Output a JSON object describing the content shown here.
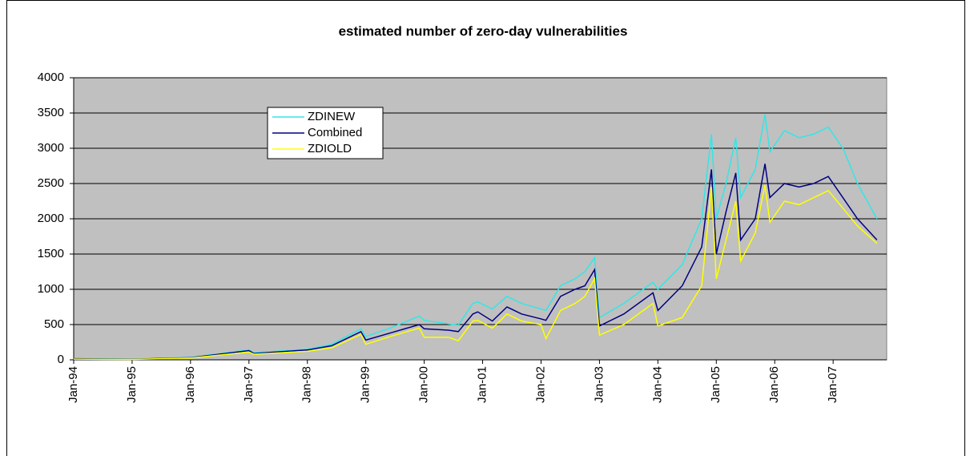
{
  "chart_data": {
    "type": "line",
    "title": "estimated number of zero-day vulnerabilities",
    "x": [
      "1994-01",
      "1995-01",
      "1996-01",
      "1997-01",
      "1997-02",
      "1998-01",
      "1998-06",
      "1998-12",
      "1999-01",
      "1999-06",
      "1999-12",
      "2000-01",
      "2000-06",
      "2000-08",
      "2000-11",
      "2000-12",
      "2001-03",
      "2001-06",
      "2001-09",
      "2002-01",
      "2002-02",
      "2002-05",
      "2002-08",
      "2002-10",
      "2002-12",
      "2003-01",
      "2003-06",
      "2003-12",
      "2004-01",
      "2004-06",
      "2004-10",
      "2004-12",
      "2005-01",
      "2005-03",
      "2005-05",
      "2005-06",
      "2005-09",
      "2005-11",
      "2005-12",
      "2006-03",
      "2006-06",
      "2006-09",
      "2006-12",
      "2007-03",
      "2007-06",
      "2007-10"
    ],
    "series": [
      {
        "name": "ZDINEW",
        "color": "#33e6e6",
        "values": [
          20,
          10,
          35,
          140,
          100,
          150,
          220,
          440,
          330,
          450,
          620,
          560,
          510,
          490,
          800,
          820,
          720,
          900,
          800,
          720,
          700,
          1050,
          1150,
          1250,
          1450,
          600,
          800,
          1100,
          1000,
          1350,
          2000,
          3200,
          2000,
          2500,
          3150,
          2300,
          2700,
          3480,
          2950,
          3250,
          3150,
          3200,
          3300,
          3000,
          2500,
          2000
        ]
      },
      {
        "name": "Combined",
        "color": "#000080",
        "values": [
          15,
          8,
          30,
          130,
          90,
          140,
          200,
          400,
          280,
          380,
          500,
          440,
          420,
          400,
          650,
          680,
          550,
          750,
          650,
          580,
          560,
          900,
          1000,
          1050,
          1280,
          480,
          650,
          950,
          700,
          1050,
          1600,
          2700,
          1500,
          2100,
          2650,
          1700,
          2000,
          2780,
          2300,
          2500,
          2450,
          2500,
          2600,
          2300,
          2000,
          1700
        ]
      },
      {
        "name": "ZDIOLD",
        "color": "#ffff00",
        "values": [
          10,
          5,
          25,
          110,
          80,
          120,
          170,
          360,
          220,
          330,
          450,
          320,
          320,
          270,
          550,
          560,
          450,
          650,
          550,
          500,
          300,
          700,
          800,
          900,
          1150,
          350,
          500,
          800,
          480,
          600,
          1050,
          2450,
          1150,
          1700,
          2250,
          1400,
          1800,
          2480,
          1950,
          2250,
          2200,
          2300,
          2400,
          2150,
          1900,
          1650
        ]
      }
    ],
    "xlim": [
      "1994-01",
      "2007-12"
    ],
    "xticks": [
      {
        "value": "1994-01",
        "label": "Jan-94"
      },
      {
        "value": "1995-01",
        "label": "Jan-95"
      },
      {
        "value": "1996-01",
        "label": "Jan-96"
      },
      {
        "value": "1997-01",
        "label": "Jan-97"
      },
      {
        "value": "1998-01",
        "label": "Jan-98"
      },
      {
        "value": "1999-01",
        "label": "Jan-99"
      },
      {
        "value": "2000-01",
        "label": "Jan-00"
      },
      {
        "value": "2001-01",
        "label": "Jan-01"
      },
      {
        "value": "2002-01",
        "label": "Jan-02"
      },
      {
        "value": "2003-01",
        "label": "Jan-03"
      },
      {
        "value": "2004-01",
        "label": "Jan-04"
      },
      {
        "value": "2005-01",
        "label": "Jan-05"
      },
      {
        "value": "2006-01",
        "label": "Jan-06"
      },
      {
        "value": "2007-01",
        "label": "Jan-07"
      }
    ],
    "ylim": [
      0,
      4000
    ],
    "yticks": [
      0,
      500,
      1000,
      1500,
      2000,
      2500,
      3000,
      3500,
      4000
    ],
    "grid": true
  }
}
